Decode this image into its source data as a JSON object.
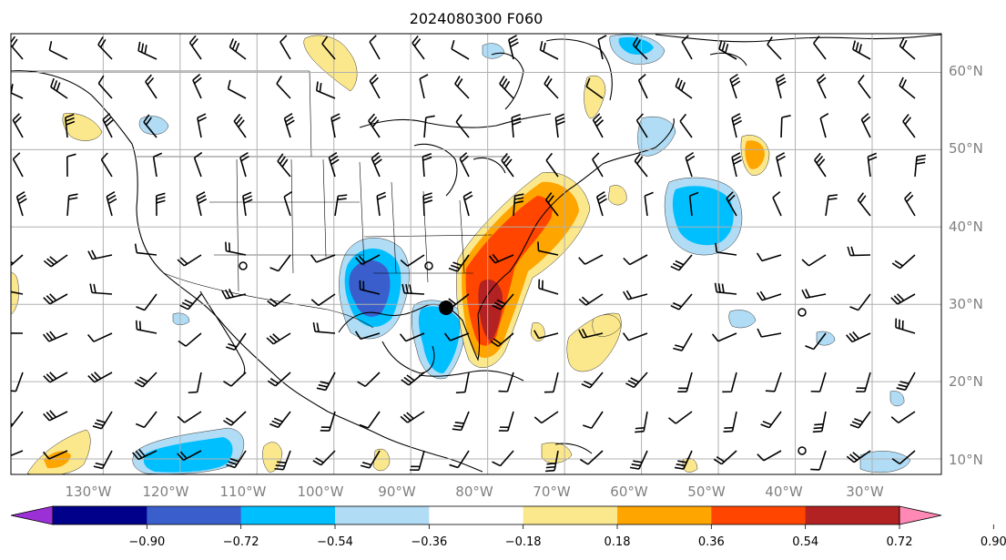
{
  "title": "2024080300 F060",
  "map": {
    "lat_labels": [
      "60°N",
      "50°N",
      "40°N",
      "30°N",
      "20°N",
      "10°N"
    ],
    "lat_values": [
      60,
      50,
      40,
      30,
      20,
      10
    ],
    "lon_labels": [
      "130°W",
      "120°W",
      "110°W",
      "100°W",
      "90°W",
      "80°W",
      "70°W",
      "60°W",
      "50°W",
      "40°W",
      "30°W"
    ],
    "lon_values": [
      -130,
      -120,
      -110,
      -100,
      -90,
      -80,
      -70,
      -60,
      -50,
      -40,
      -30
    ],
    "lon_range": [
      -142,
      -21
    ],
    "lat_range": [
      8,
      65
    ],
    "grid": true
  },
  "colorbar": {
    "tick_labels": [
      "−0.90",
      "−0.72",
      "−0.54",
      "−0.36",
      "−0.18",
      "0.18",
      "0.36",
      "0.54",
      "0.72",
      "0.90"
    ],
    "colors": [
      "#9b30d6",
      "#00008b",
      "#3a5fcd",
      "#00bfff",
      "#b0dcf5",
      "#ffffff",
      "#fce88c",
      "#ffa500",
      "#ff4500",
      "#b22222",
      "#ff88b4"
    ],
    "extend": "both"
  }
}
